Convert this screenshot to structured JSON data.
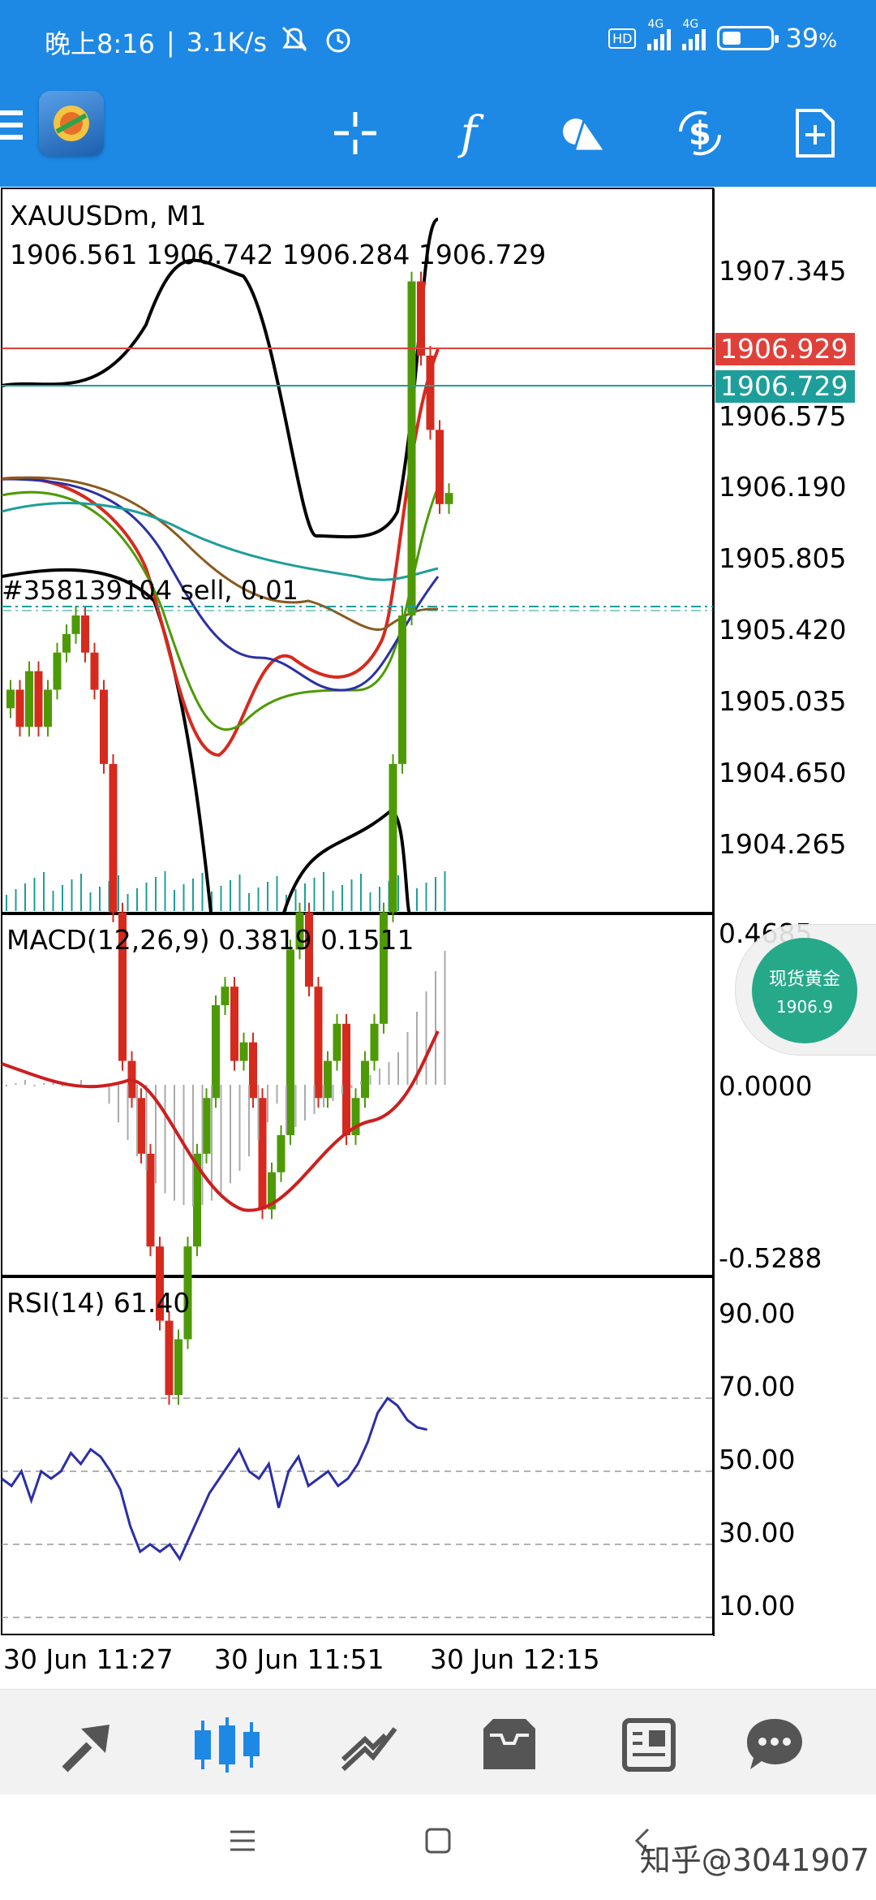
{
  "status_bar": {
    "time": "晚上8:16",
    "separator": "|",
    "speed": "3.1K/s",
    "network1": "4G",
    "network2": "4G",
    "hd": "HD",
    "battery_level": 0.39,
    "battery_text": "39",
    "battery_unit": "%"
  },
  "toolbar": {
    "icons": [
      "menu-icon",
      "app-logo",
      "crosshair-icon",
      "function-icon",
      "objects-icon",
      "dollar-trade-icon",
      "new-document-icon"
    ],
    "function_glyph": "f"
  },
  "chart": {
    "symbol_timeframe": "XAUUSDm, M1",
    "ohlc": "1906.561 1906.742 1906.284 1906.729",
    "order_label": "#358139104 sell, 0.01",
    "price_scale": [
      "1907.345",
      "1906.575",
      "1906.190",
      "1905.805",
      "1905.420",
      "1905.035",
      "1904.650",
      "1904.265"
    ],
    "ask_price": "1906.929",
    "bid_price": "1906.729",
    "colors": {
      "ask_line": "#e0403a",
      "bid_line": "#1e9e9a",
      "bull_candle": "#4e9a06",
      "bear_candle": "#d62a1e",
      "macd_signal": "#cc1f1f",
      "rsi_line": "#2b2fa6"
    }
  },
  "macd": {
    "label": "MACD(12,26,9) 0.3819 0.1511",
    "scale": [
      "0.4685",
      "0.0000",
      "-0.5288"
    ]
  },
  "rsi": {
    "label": "RSI(14) 61.40",
    "scale": [
      "90.00",
      "70.00",
      "50.00",
      "30.00",
      "10.00"
    ]
  },
  "time_axis": [
    "30 Jun 11:27",
    "30 Jun 11:51",
    "30 Jun 12:15"
  ],
  "gold_badge": {
    "title": "现货黄金",
    "price": "1906.9"
  },
  "bottom_tabs": [
    "quotes-icon",
    "chart-icon",
    "trade-icon",
    "history-icon",
    "news-icon",
    "chat-icon"
  ],
  "active_tab": "chart-icon",
  "nav_bar": [
    "menu-nav-icon",
    "home-nav-icon",
    "back-nav-icon"
  ],
  "watermark": "知乎@3041907"
}
